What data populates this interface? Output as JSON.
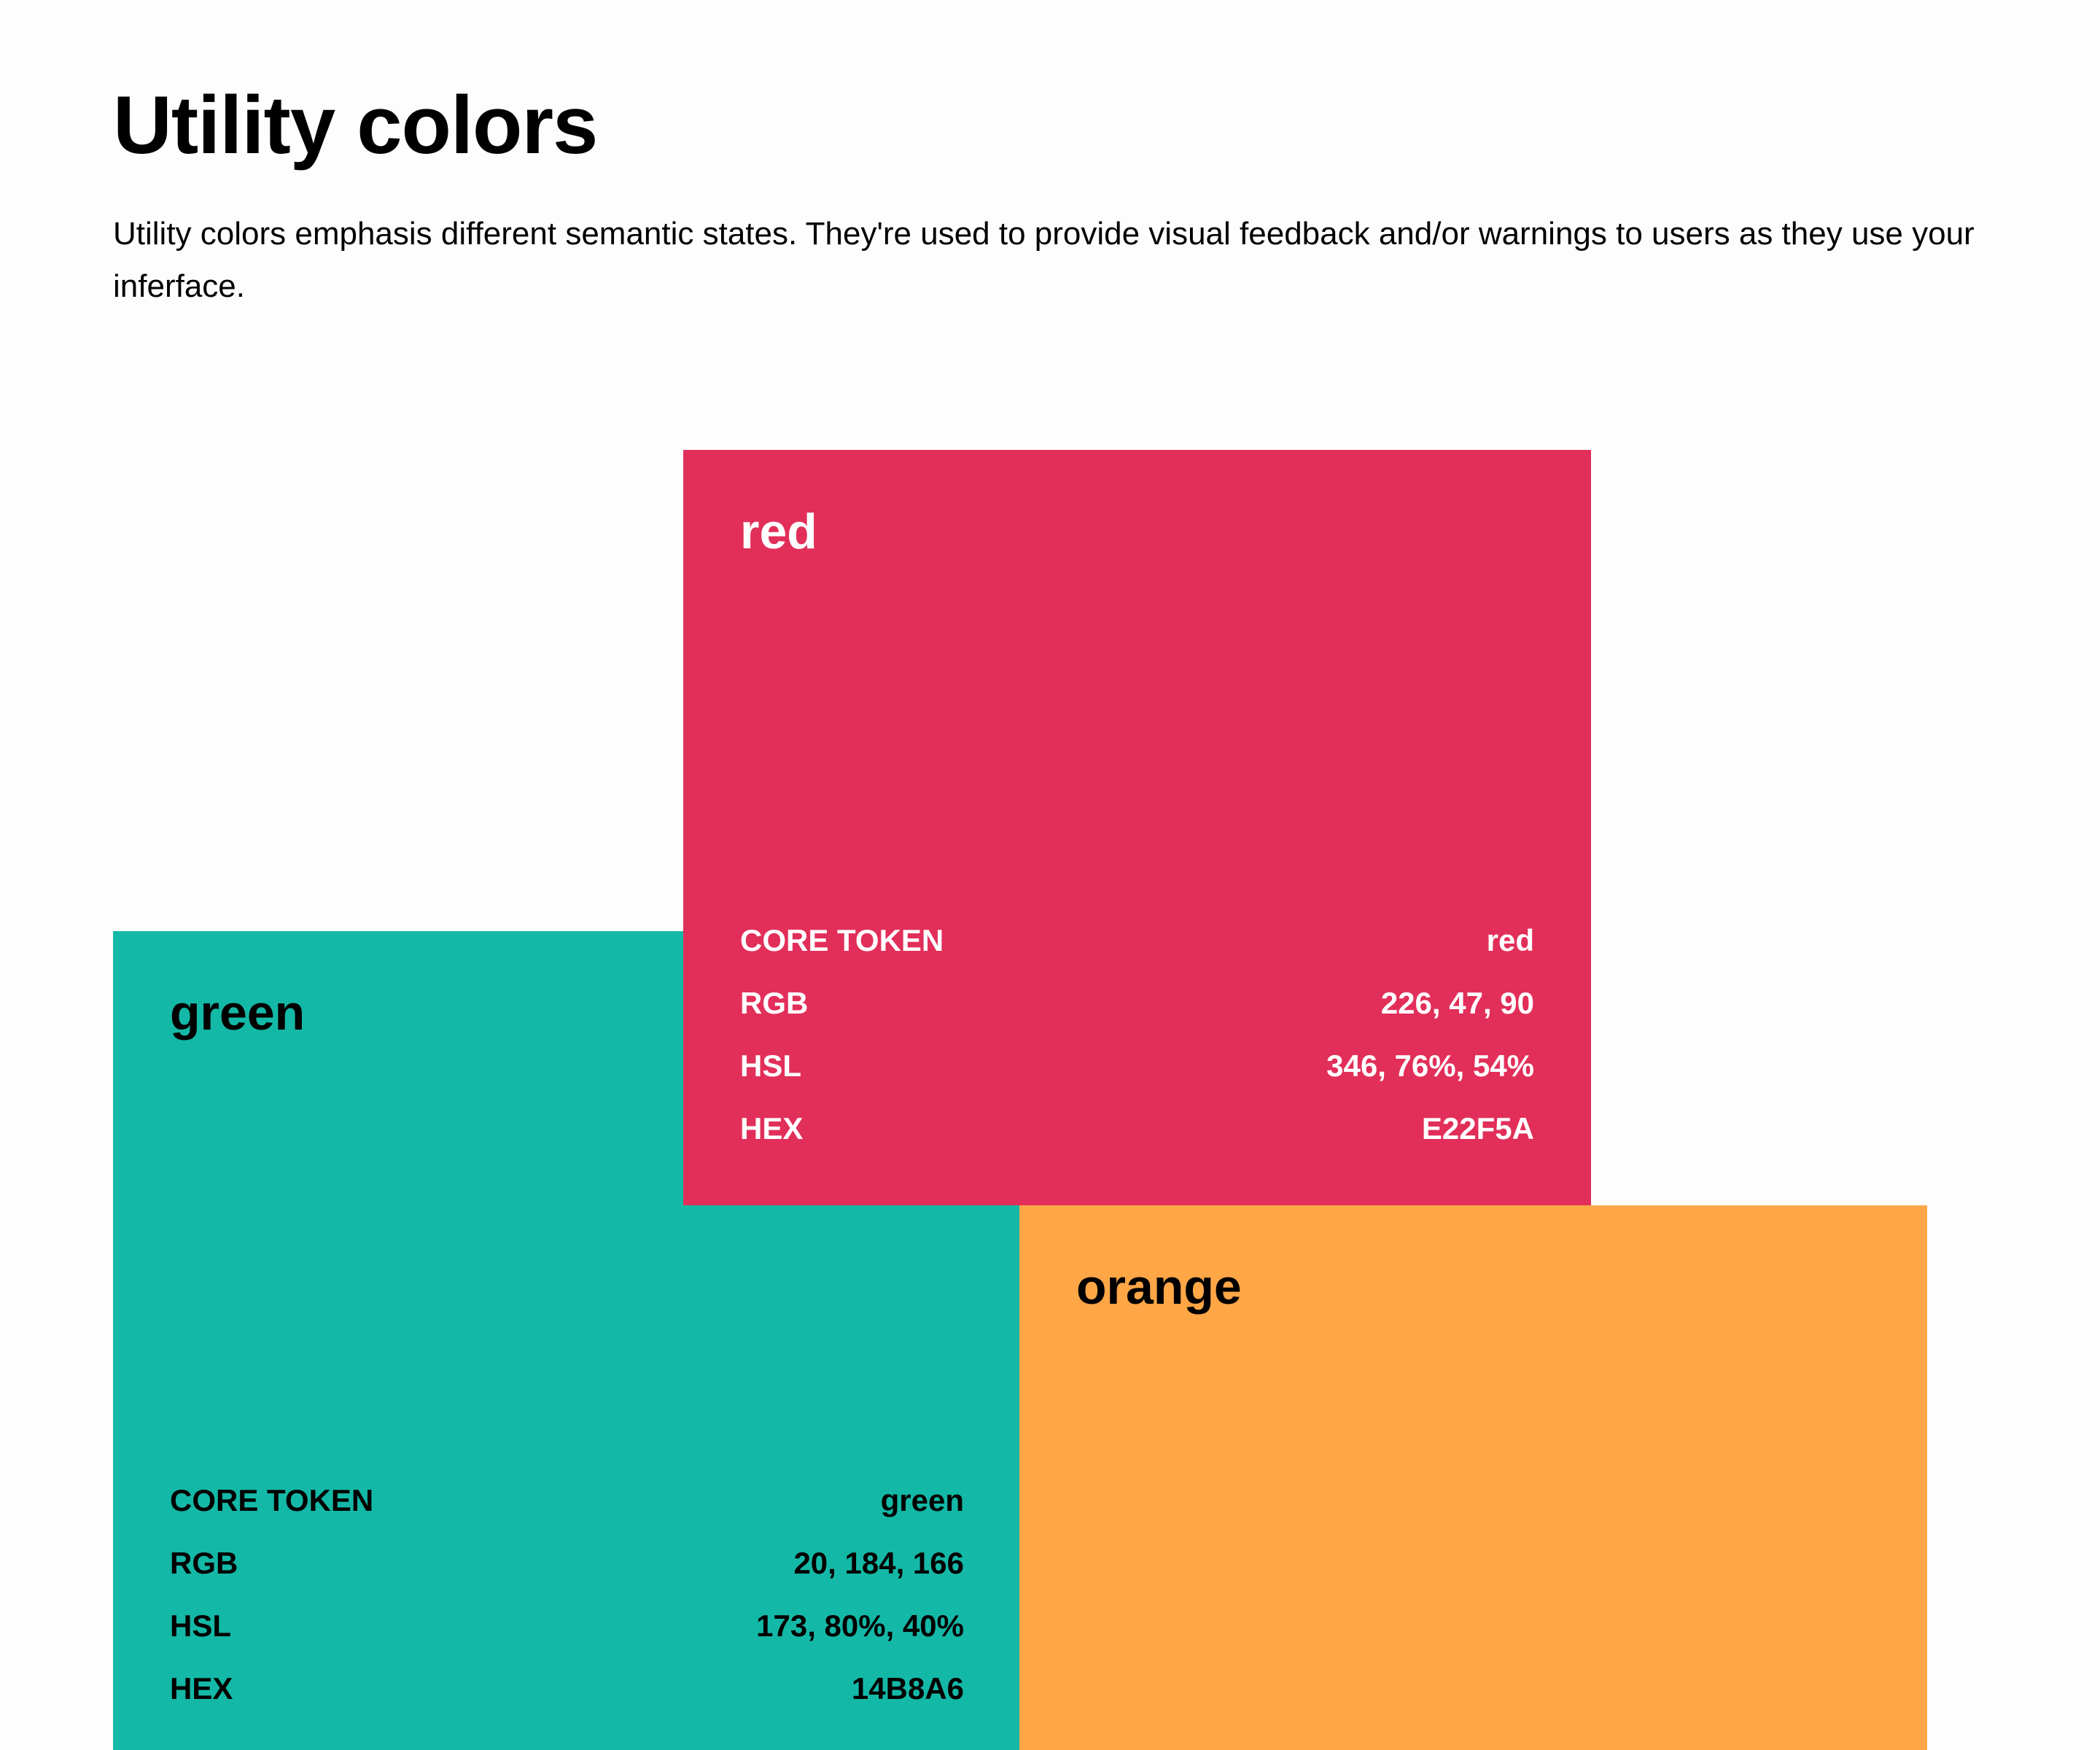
{
  "header": {
    "title": "Utility colors",
    "intro": "Utility colors emphasis different semantic states. They're used to provide visual feedback and/or warnings to users as they use your inferface."
  },
  "swatches": {
    "red": {
      "name": "red",
      "color": "#E22F5A",
      "rows": [
        {
          "label": "CORE TOKEN",
          "value": "red"
        },
        {
          "label": "RGB",
          "value": "226, 47, 90"
        },
        {
          "label": "HSL",
          "value": "346, 76%, 54%"
        },
        {
          "label": "HEX",
          "value": "E22F5A"
        }
      ]
    },
    "green": {
      "name": "green",
      "color": "#14B8A6",
      "rows": [
        {
          "label": "CORE TOKEN",
          "value": "green"
        },
        {
          "label": "RGB",
          "value": "20, 184, 166"
        },
        {
          "label": "HSL",
          "value": "173, 80%, 40%"
        },
        {
          "label": "HEX",
          "value": "14B8A6"
        }
      ]
    },
    "orange": {
      "name": "orange",
      "color": "#FFA647"
    }
  }
}
